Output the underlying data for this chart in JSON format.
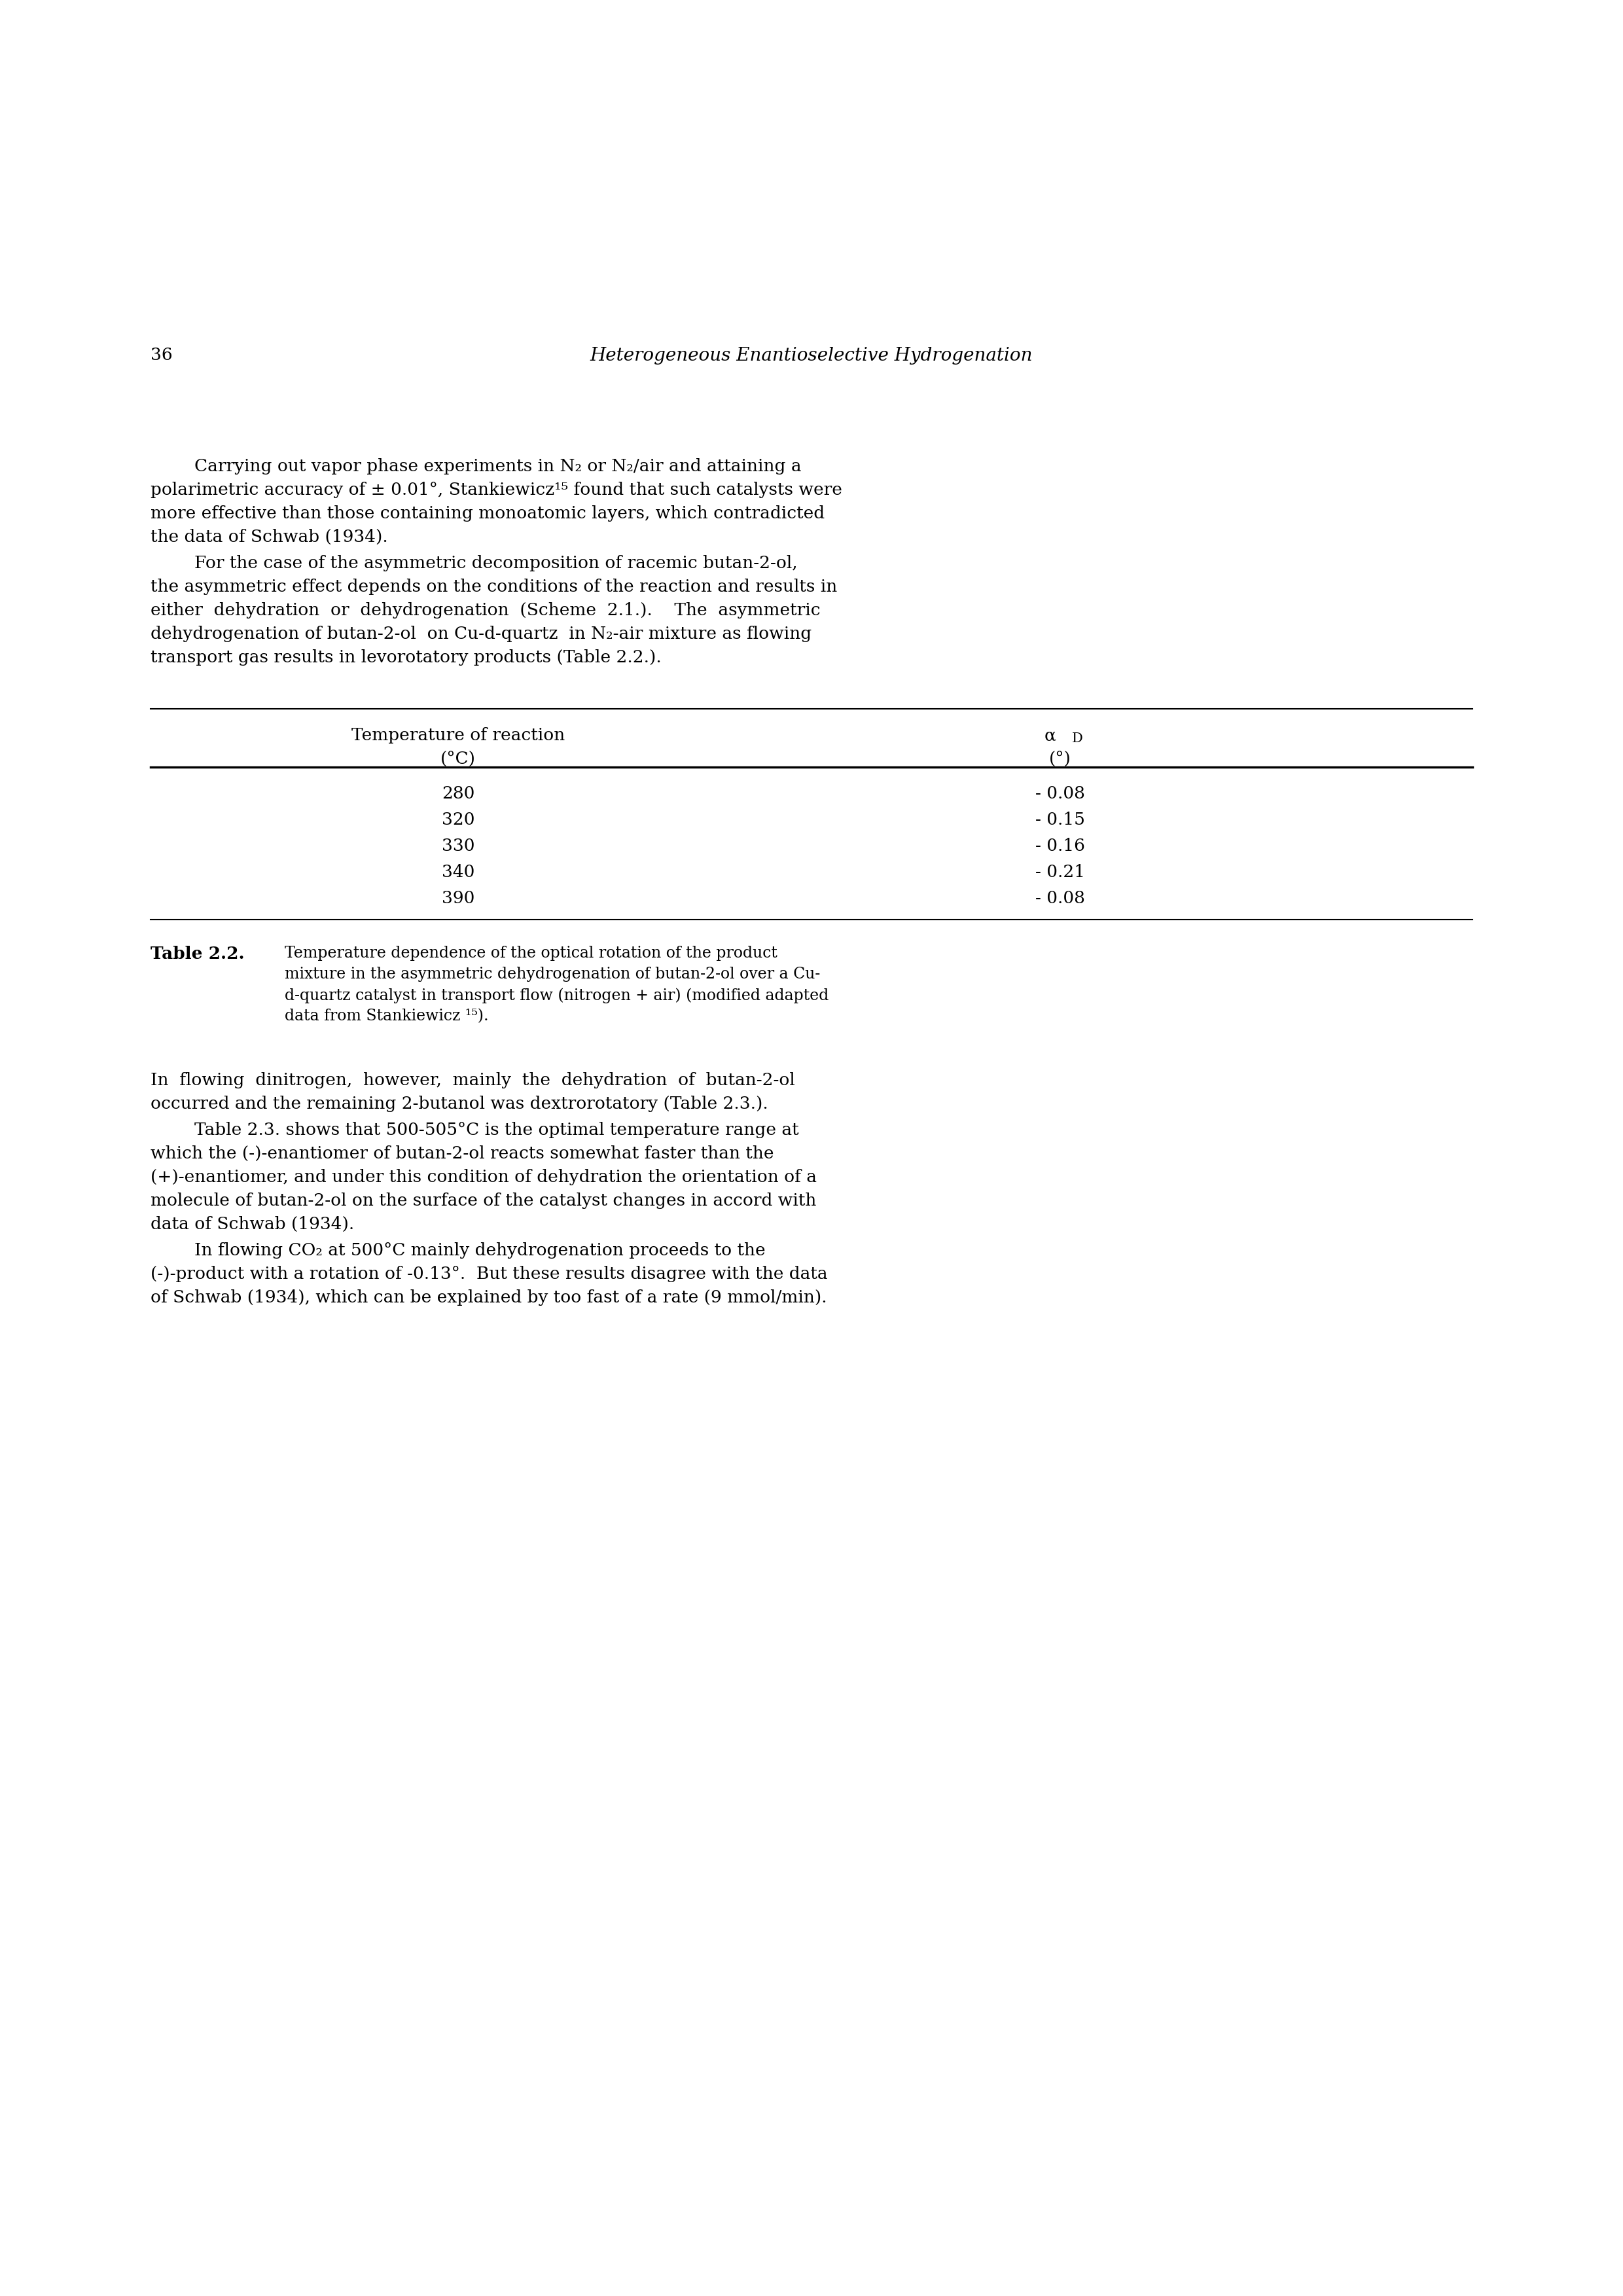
{
  "page_number": "36",
  "header_title": "Heterogeneous Enantioselective Hydrogenation",
  "table_col1_header": "Temperature of reaction",
  "table_col1_subheader": "(°C)",
  "table_col2_header": "α",
  "table_col2_sub": "D",
  "table_col2_subheader": "(°)",
  "table_data": [
    [
      "280",
      "- 0.08"
    ],
    [
      "320",
      "- 0.15"
    ],
    [
      "330",
      "- 0.16"
    ],
    [
      "340",
      "- 0.21"
    ],
    [
      "390",
      "- 0.08"
    ]
  ],
  "background_color": "#ffffff",
  "text_color": "#000000"
}
